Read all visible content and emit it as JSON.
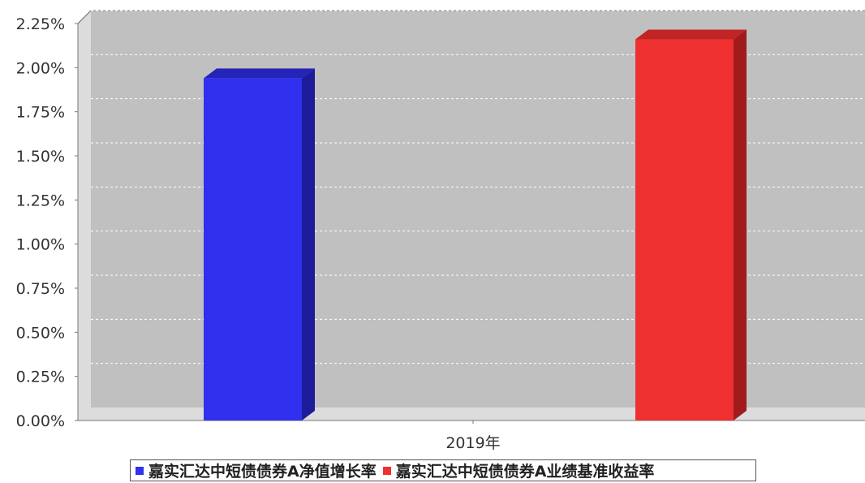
{
  "chart_data": {
    "type": "bar",
    "categories": [
      "2019年"
    ],
    "series": [
      {
        "name": "嘉实汇达中短债债券A净值增长率",
        "values": [
          1.94
        ],
        "color": "#3030ee",
        "side_color": "#1c1c9a",
        "top_color": "#2424b8"
      },
      {
        "name": "嘉实汇达中短债债券A业绩基准收益率",
        "values": [
          2.16
        ],
        "color": "#ee3030",
        "side_color": "#a01c1c",
        "top_color": "#c02424"
      }
    ],
    "ylim": [
      0,
      2.25
    ],
    "yticks": [
      "0.00%",
      "0.25%",
      "0.50%",
      "0.75%",
      "1.00%",
      "1.25%",
      "1.50%",
      "1.75%",
      "2.00%",
      "2.25%"
    ],
    "grid": true,
    "legend_position": "bottom",
    "plot_background": "#c0c0c0",
    "title": "",
    "xlabel": "",
    "ylabel": ""
  }
}
